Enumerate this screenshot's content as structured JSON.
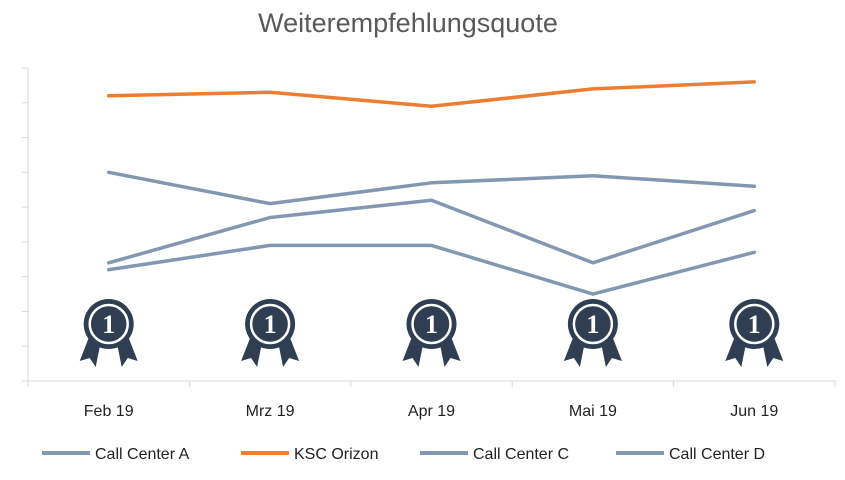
{
  "chart_data": {
    "type": "line",
    "title": "Weiterempfehlungsquote",
    "xlabel": "",
    "ylabel": "",
    "categories": [
      "Feb 19",
      "Mrz 19",
      "Apr 19",
      "Mai 19",
      "Jun 19"
    ],
    "ylim": [
      0,
      9
    ],
    "y_ticks_shown": false,
    "grid": false,
    "legend_position": "bottom",
    "series": [
      {
        "name": "Call Center A",
        "color": "#8497b0",
        "values": [
          6.0,
          5.1,
          5.7,
          5.9,
          5.6
        ]
      },
      {
        "name": "KSC Orizon",
        "color": "#ed7d31",
        "values": [
          8.2,
          8.3,
          7.9,
          8.4,
          8.6
        ]
      },
      {
        "name": "Call Center C",
        "color": "#8497b0",
        "values": [
          3.4,
          4.7,
          5.2,
          3.4,
          4.9
        ]
      },
      {
        "name": "Call Center D",
        "color": "#8497b0",
        "values": [
          3.2,
          3.9,
          3.9,
          2.5,
          3.7
        ]
      }
    ],
    "badges": {
      "icon": "first-place-award-icon",
      "label": "1",
      "count": 5,
      "color": "#2f3e52"
    }
  }
}
